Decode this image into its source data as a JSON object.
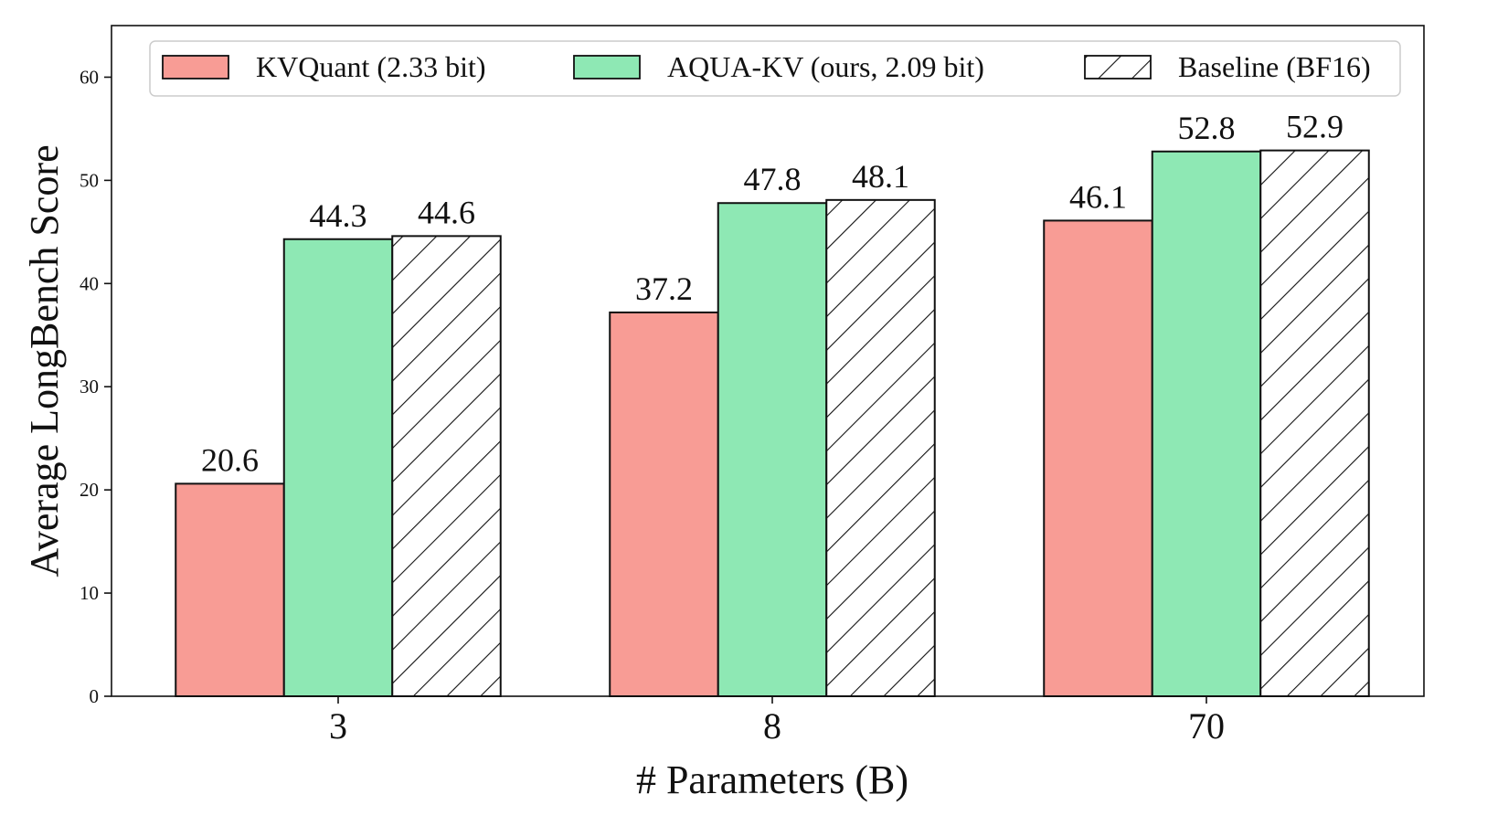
{
  "colors": {
    "kvquant": "#f89c95",
    "aqua": "#8ee8b4",
    "baseline": "#ffffff",
    "edge": "#111111",
    "legend_border": "#cccccc"
  },
  "chart_data": {
    "type": "bar",
    "title": "",
    "xlabel": "# Parameters (B)",
    "ylabel": "Average LongBench Score",
    "categories": [
      "3",
      "8",
      "70"
    ],
    "ylim": [
      0,
      65
    ],
    "yticks": [
      0,
      10,
      20,
      30,
      40,
      50,
      60
    ],
    "grid": false,
    "legend_position": "top",
    "series": [
      {
        "name": "KVQuant (2.33 bit)",
        "values": [
          20.6,
          37.2,
          46.1
        ],
        "color": "#f89c95",
        "hatch": false
      },
      {
        "name": "AQUA-KV (ours, 2.09 bit)",
        "values": [
          44.3,
          47.8,
          52.8
        ],
        "color": "#8ee8b4",
        "hatch": false
      },
      {
        "name": "Baseline (BF16)",
        "values": [
          44.6,
          48.1,
          52.9
        ],
        "color": "#ffffff",
        "hatch": true
      }
    ],
    "data_labels": [
      [
        "20.6",
        "37.2",
        "46.1"
      ],
      [
        "44.3",
        "47.8",
        "52.8"
      ],
      [
        "44.6",
        "48.1",
        "52.9"
      ]
    ]
  }
}
